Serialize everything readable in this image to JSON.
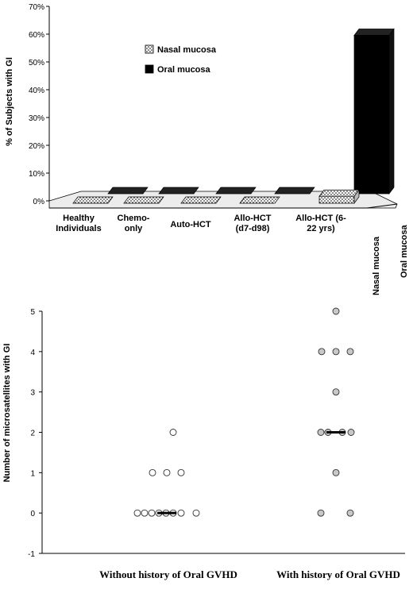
{
  "chart_data": [
    {
      "type": "bar",
      "style": "3d",
      "ylabel": "% of Subjects with GI",
      "ylim": [
        0,
        70
      ],
      "yticks": [
        "0%",
        "10%",
        "20%",
        "30%",
        "40%",
        "50%",
        "60%",
        "70%"
      ],
      "categories": [
        [
          "Healthy",
          "Individuals"
        ],
        [
          "Chemo-",
          "only"
        ],
        [
          "Auto-HCT"
        ],
        [
          "Allo-HCT",
          "(d7-d98)"
        ],
        [
          "Allo-HCT (6-",
          "22 yrs)"
        ]
      ],
      "depth_labels": [
        "Nasal mucosa",
        "Oral mucosa"
      ],
      "series": [
        {
          "name": "Nasal mucosa",
          "values": [
            0,
            0,
            0,
            0,
            5
          ],
          "color": "#ffffff",
          "pattern": "dots"
        },
        {
          "name": "Oral mucosa",
          "values": [
            0,
            0,
            0,
            0,
            60
          ],
          "color": "#000000",
          "pattern": "solid"
        }
      ],
      "legend": {
        "placement": "top-center"
      }
    },
    {
      "type": "scatter",
      "ylabel": "Number of microsatellites with GI",
      "ylim": [
        -1,
        5
      ],
      "yticks": [
        "-1",
        "0",
        "1",
        "2",
        "3",
        "4",
        "5"
      ],
      "categories": [
        "Without history of Oral GVHD",
        "With history of Oral GVHD"
      ],
      "medians": [
        0,
        2
      ],
      "series": [
        {
          "group": "Without history of Oral GVHD",
          "color": "#ffffff",
          "values": [
            2,
            1,
            1,
            1,
            0,
            0,
            0,
            0,
            0,
            0,
            0,
            0
          ]
        },
        {
          "group": "With history of Oral GVHD",
          "color": "#c8c8c8",
          "values": [
            5,
            4,
            4,
            4,
            3,
            2,
            2,
            2,
            2,
            1,
            0,
            0
          ]
        }
      ]
    }
  ]
}
